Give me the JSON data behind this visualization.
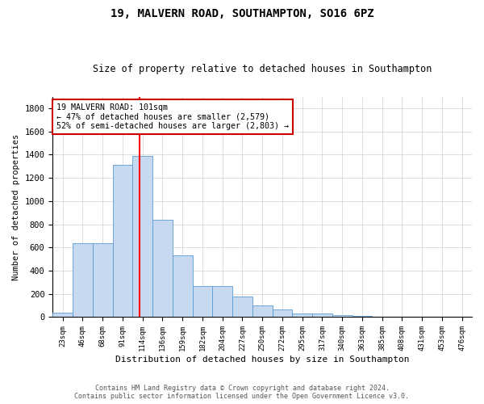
{
  "title1": "19, MALVERN ROAD, SOUTHAMPTON, SO16 6PZ",
  "title2": "Size of property relative to detached houses in Southampton",
  "xlabel": "Distribution of detached houses by size in Southampton",
  "ylabel": "Number of detached properties",
  "categories": [
    "23sqm",
    "46sqm",
    "68sqm",
    "91sqm",
    "114sqm",
    "136sqm",
    "159sqm",
    "182sqm",
    "204sqm",
    "227sqm",
    "250sqm",
    "272sqm",
    "295sqm",
    "317sqm",
    "340sqm",
    "363sqm",
    "385sqm",
    "408sqm",
    "431sqm",
    "453sqm",
    "476sqm"
  ],
  "values": [
    40,
    640,
    640,
    1310,
    1390,
    840,
    530,
    270,
    270,
    180,
    100,
    65,
    30,
    30,
    20,
    10,
    5,
    5,
    3,
    3,
    2
  ],
  "bar_color": "#c6d9f0",
  "bar_edge_color": "#5b9bd5",
  "red_line_x": 3.85,
  "annotation_text1": "19 MALVERN ROAD: 101sqm",
  "annotation_text2": "← 47% of detached houses are smaller (2,579)",
  "annotation_text3": "52% of semi-detached houses are larger (2,803) →",
  "annotation_box_color": "#ffffff",
  "annotation_box_edge": "#cc0000",
  "ylim": [
    0,
    1900
  ],
  "yticks": [
    0,
    200,
    400,
    600,
    800,
    1000,
    1200,
    1400,
    1600,
    1800
  ],
  "footer1": "Contains HM Land Registry data © Crown copyright and database right 2024.",
  "footer2": "Contains public sector information licensed under the Open Government Licence v3.0.",
  "bg_color": "#ffffff",
  "grid_color": "#d0d0d0"
}
